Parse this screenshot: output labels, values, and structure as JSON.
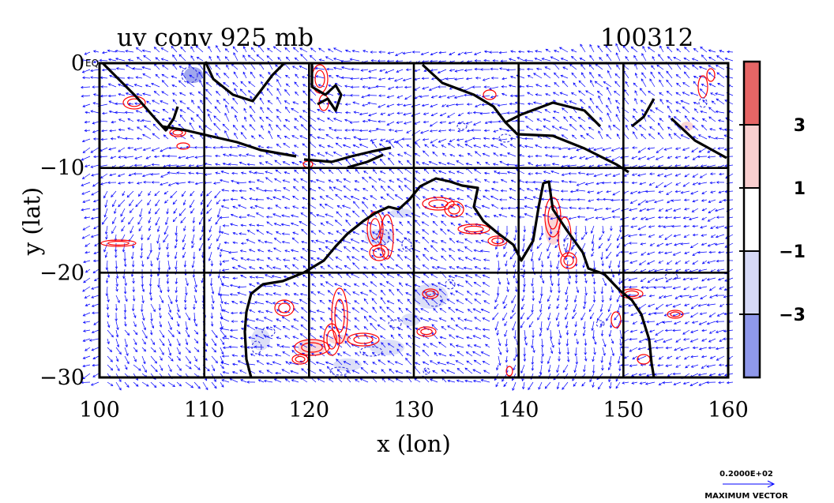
{
  "chart_data": {
    "type": "vector_field_contour_map",
    "title": "uv conv 925 mb",
    "date_label": "100312",
    "xlabel": "x (lon)",
    "ylabel": "y (lat)",
    "xlim": [
      100,
      160
    ],
    "ylim": [
      -30,
      0
    ],
    "x_ticks": [
      100,
      110,
      120,
      130,
      140,
      150,
      160
    ],
    "y_ticks": [
      {
        "value": 0,
        "label": "0"
      },
      {
        "value": -10,
        "label": "−10"
      },
      {
        "value": -20,
        "label": "−20"
      },
      {
        "value": -30,
        "label": "−30"
      }
    ],
    "y_top_note": "EQ",
    "grid": true,
    "grid_lines_x": [
      110,
      120,
      130,
      140,
      150
    ],
    "grid_lines_y": [
      -10,
      -20
    ],
    "colorbar": {
      "labels": [
        "3",
        "1",
        "−1",
        "−3"
      ],
      "bands": [
        {
          "range": "> 3",
          "color": "#e66565"
        },
        {
          "range": "1 to 3",
          "color": "#f9cfcf"
        },
        {
          "range": "-1 to 1",
          "color": "#ffffff"
        },
        {
          "range": "-3 to -1",
          "color": "#d6d9f6"
        },
        {
          "range": "< -3",
          "color": "#8f98ea"
        }
      ]
    },
    "vector_legend": {
      "value_label": "0.2000E+02",
      "caption": "MAXIMUM VECTOR"
    },
    "colors": {
      "vectors": "#0000ff",
      "positive_contours": "#ff0000",
      "negative_contours": "#3333dd",
      "coastline": "#000000"
    }
  }
}
